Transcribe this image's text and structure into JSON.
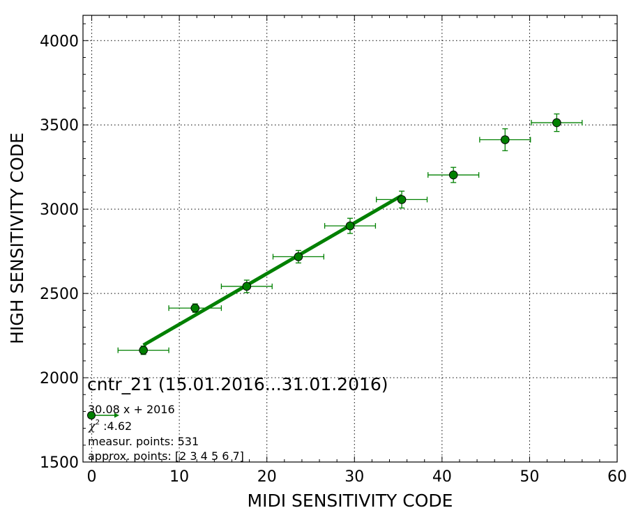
{
  "chart_data": {
    "type": "scatter",
    "title": "",
    "xlabel": "MIDI SENSITIVITY CODE",
    "ylabel": "HIGH SENSITIVITY CODE",
    "xlim": [
      -1,
      60
    ],
    "ylim": [
      1500,
      4150
    ],
    "xticks": [
      0,
      10,
      20,
      30,
      40,
      50,
      60
    ],
    "yticks": [
      1500,
      2000,
      2500,
      3000,
      3500,
      4000
    ],
    "grid": true,
    "series": [
      {
        "kind": "points-with-errorbars",
        "color": "#008000",
        "marker_face": "#008000",
        "points": [
          {
            "x": 5.9,
            "y": 2163,
            "xerr": 2.9,
            "yerr": 25
          },
          {
            "x": 11.8,
            "y": 2413,
            "xerr": 3.0,
            "yerr": 25
          },
          {
            "x": 17.7,
            "y": 2542,
            "xerr": 2.9,
            "yerr": 37
          },
          {
            "x": 23.6,
            "y": 2718,
            "xerr": 2.9,
            "yerr": 37
          },
          {
            "x": 29.5,
            "y": 2901,
            "xerr": 2.9,
            "yerr": 45
          },
          {
            "x": 35.4,
            "y": 3057,
            "xerr": 2.9,
            "yerr": 50
          },
          {
            "x": 41.3,
            "y": 3203,
            "xerr": 2.9,
            "yerr": 45
          },
          {
            "x": 47.2,
            "y": 3412,
            "xerr": 2.9,
            "yerr": 65
          },
          {
            "x": 53.1,
            "y": 3513,
            "xerr": 2.9,
            "yerr": 52
          }
        ]
      },
      {
        "kind": "fit-line",
        "color": "#008000",
        "x": [
          5.9,
          35.4
        ],
        "slope": 30.08,
        "intercept": 2016
      }
    ],
    "annotations": {
      "title": "cntr_21 (15.01.2016...31.01.2016)",
      "equation": "30.08 x + 2016",
      "chi_symbol": "χ",
      "chi_power": "2",
      "chi_value": " :4.62",
      "measur_points": "measur. points: 531",
      "approx_points": "approx. points: [2 3 4 5 6 7]"
    }
  }
}
